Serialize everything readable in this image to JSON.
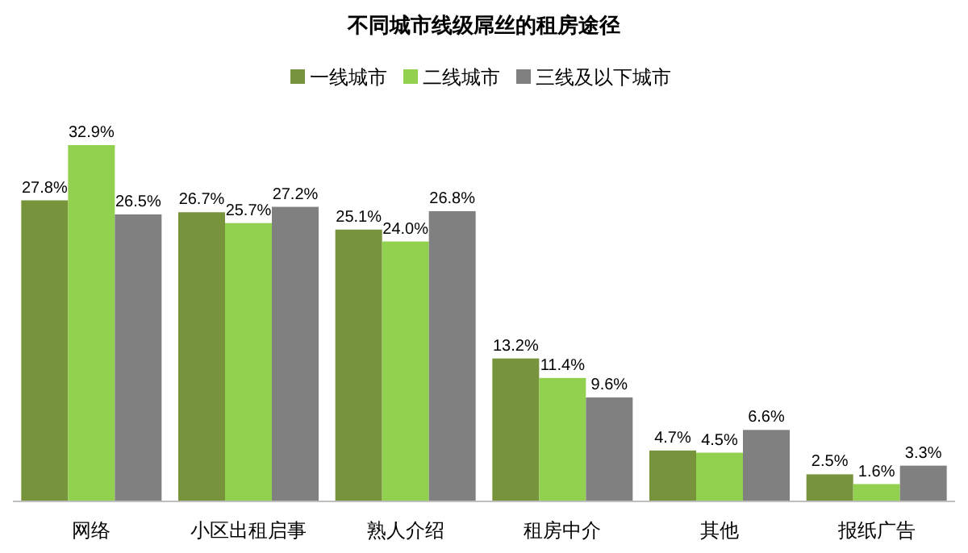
{
  "chart_data": {
    "type": "bar",
    "title": "不同城市线级屌丝的租房途径",
    "categories": [
      "网络",
      "小区出租启事",
      "熟人介绍",
      "租房中介",
      "其他",
      "报纸广告"
    ],
    "series": [
      {
        "name": "一线城市",
        "color": "#77933c",
        "values": [
          27.8,
          26.7,
          25.1,
          13.2,
          4.7,
          2.5
        ],
        "value_labels": [
          "27.8%",
          "26.7%",
          "25.1%",
          "13.2%",
          "4.7%",
          "2.5%"
        ]
      },
      {
        "name": "二线城市",
        "color": "#92d050",
        "values": [
          32.9,
          25.7,
          24.0,
          11.4,
          4.5,
          1.6
        ],
        "value_labels": [
          "32.9%",
          "25.7%",
          "24.0%",
          "11.4%",
          "4.5%",
          "1.6%"
        ]
      },
      {
        "name": "三线及以下城市",
        "color": "#808080",
        "values": [
          26.5,
          27.2,
          26.8,
          9.6,
          6.6,
          3.3
        ],
        "value_labels": [
          "26.5%",
          "27.2%",
          "26.8%",
          "9.6%",
          "6.6%",
          "3.3%"
        ]
      }
    ],
    "legend": "top right"
  }
}
